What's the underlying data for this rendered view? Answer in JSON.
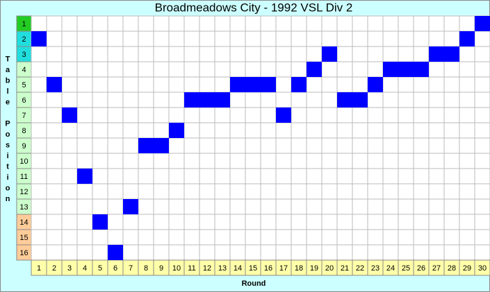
{
  "chart_data": {
    "type": "position",
    "title": "Broadmeadows City - 1992 VSL Div 2",
    "y_label": "Table Position",
    "x_label": "Round",
    "categories": [
      "1",
      "2",
      "3",
      "4",
      "5",
      "6",
      "7",
      "8",
      "9",
      "10",
      "11",
      "12",
      "13",
      "14",
      "15",
      "16",
      "17",
      "18",
      "19",
      "20",
      "21",
      "22",
      "23",
      "24",
      "25",
      "26",
      "27",
      "28",
      "29",
      "30"
    ],
    "values": [
      2,
      5,
      7,
      11,
      14,
      16,
      13,
      9,
      9,
      8,
      6,
      6,
      6,
      5,
      5,
      5,
      7,
      5,
      4,
      3,
      6,
      6,
      5,
      4,
      4,
      4,
      3,
      3,
      2,
      1
    ],
    "color": "#0000ff",
    "ylim": [
      0.5,
      16.5
    ],
    "yticks": [
      1,
      2,
      3,
      4,
      5,
      6,
      7,
      8,
      9,
      10,
      11,
      12,
      13,
      14,
      15,
      16
    ],
    "ytick_colors": [
      "#22cc22",
      "#22dddd",
      "#22dddd",
      "#ccffcc",
      "#ccffcc",
      "#ccffcc",
      "#ccffcc",
      "#ccffcc",
      "#ccffcc",
      "#ccffcc",
      "#ccffcc",
      "#ccffcc",
      "#ccffcc",
      "#ffcc99",
      "#ffcc99",
      "#ffcc99"
    ],
    "category_color": "#ffffaa",
    "background": "#ccffff",
    "grid": true
  }
}
